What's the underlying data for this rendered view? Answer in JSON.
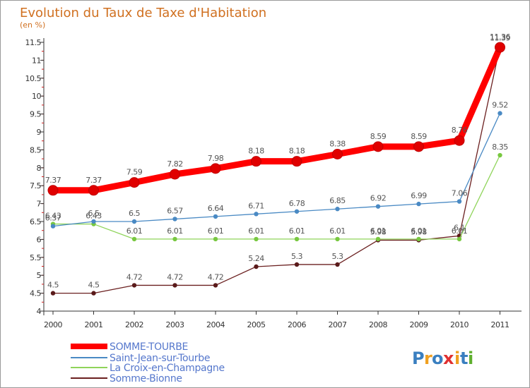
{
  "chart_data": {
    "type": "line",
    "title": "Evolution du Taux de Taxe d'Habitation",
    "subtitle": "(en %)",
    "x": [
      "2000",
      "2001",
      "2002",
      "2003",
      "2004",
      "2005",
      "2006",
      "2007",
      "2008",
      "2009",
      "2010",
      "2011"
    ],
    "ylim": [
      4,
      11.5
    ],
    "yticks": [
      "4",
      "4.5",
      "5",
      "5.5",
      "6",
      "6.5",
      "7",
      "7.5",
      "8",
      "8.5",
      "9",
      "9.5",
      "10",
      "10.5",
      "11",
      "11.5"
    ],
    "grid": false,
    "legend_placement": "bottom-left",
    "series": [
      {
        "name": "SOMME-TOURBE",
        "color": "#ff0000",
        "values": [
          7.37,
          7.37,
          7.59,
          7.82,
          7.98,
          8.18,
          8.18,
          8.38,
          8.59,
          8.59,
          8.76,
          11.36
        ],
        "labels": [
          "7.37",
          "7.37",
          "7.59",
          "7.82",
          "7.98",
          "8.18",
          "8.18",
          "8.38",
          "8.59",
          "8.59",
          "8.76",
          "11.36"
        ]
      },
      {
        "name": "Saint-Jean-sur-Tourbe",
        "color": "#5b9bd5",
        "values": [
          6.37,
          6.5,
          6.5,
          6.57,
          6.64,
          6.71,
          6.78,
          6.85,
          6.92,
          6.99,
          7.06,
          9.52
        ],
        "labels": [
          "6.37",
          "6.5",
          "6.5",
          "6.57",
          "6.64",
          "6.71",
          "6.78",
          "6.85",
          "6.92",
          "6.99",
          "7.06",
          "9.52"
        ]
      },
      {
        "name": "La Croix-en-Champagne",
        "color": "#8fd45a",
        "values": [
          6.43,
          6.43,
          6.01,
          6.01,
          6.01,
          6.01,
          6.01,
          6.01,
          6.01,
          6.01,
          6.01,
          8.35
        ],
        "labels": [
          "6.43",
          "6.43",
          "6.01",
          "6.01",
          "6.01",
          "6.01",
          "6.01",
          "6.01",
          "6.01",
          "6.01",
          "6.01",
          "8.35"
        ]
      },
      {
        "name": "Somme-Bionne",
        "color": "#7a2a2a",
        "values": [
          4.5,
          4.5,
          4.72,
          4.72,
          4.72,
          5.24,
          5.3,
          5.3,
          5.98,
          5.98,
          6.1,
          11.39
        ],
        "labels": [
          "4.5",
          "4.5",
          "4.72",
          "4.72",
          "4.72",
          "5.24",
          "5.3",
          "5.3",
          "5.98",
          "5.98",
          "6.1",
          "11.39"
        ]
      }
    ]
  },
  "logo": {
    "letters": [
      "P",
      "r",
      "o",
      "x",
      "i",
      "t",
      "i"
    ],
    "colors": [
      "#3a7fc0",
      "#f0a020",
      "#3a7fc0",
      "#e03030",
      "#f0a020",
      "#3a7fc0",
      "#60b030"
    ]
  }
}
